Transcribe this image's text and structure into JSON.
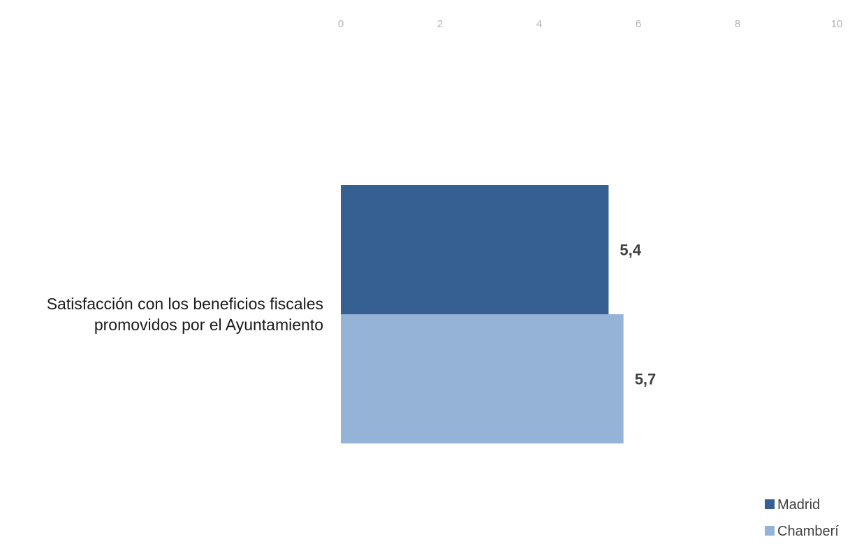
{
  "chart_data": {
    "type": "bar",
    "orientation": "horizontal",
    "categories": [
      "Satisfacción con los beneficios fiscales promovidos por el Ayuntamiento"
    ],
    "category_label_lines": [
      "Satisfacción con los beneficios fiscales",
      "promovidos por el Ayuntamiento"
    ],
    "series": [
      {
        "name": "Madrid",
        "values": [
          5.4
        ],
        "value_labels": [
          "5,4"
        ],
        "color": "#376092"
      },
      {
        "name": "Chamberí",
        "values": [
          5.7
        ],
        "value_labels": [
          "5,7"
        ],
        "color": "#95b3d7"
      }
    ],
    "x_ticks": [
      "0",
      "2",
      "4",
      "6",
      "8",
      "10"
    ],
    "xlim": [
      0,
      10
    ],
    "x_axis_position": "top",
    "grid": false,
    "legend_position": "bottom-right",
    "title": "",
    "xlabel": "",
    "ylabel": ""
  }
}
